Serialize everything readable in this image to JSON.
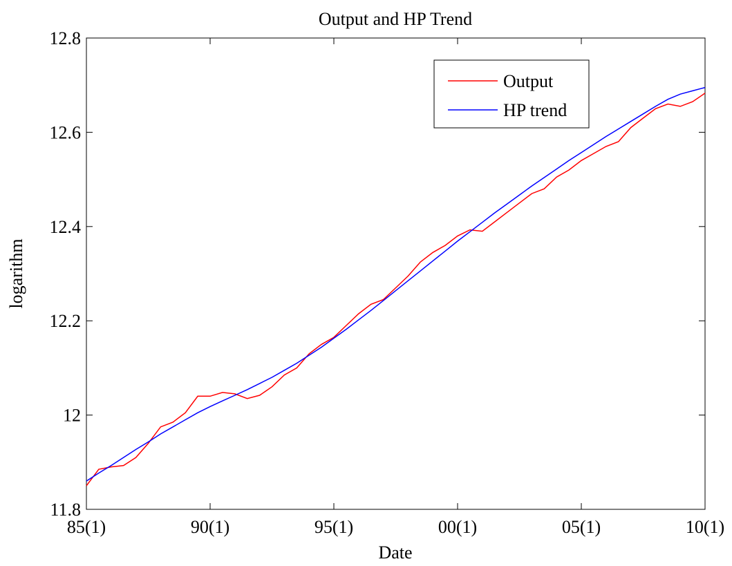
{
  "chart_data": {
    "type": "line",
    "title": "Output and HP Trend",
    "xlabel": "Date",
    "ylabel": "logarithm",
    "x": [
      1985,
      1985.5,
      1986,
      1986.5,
      1987,
      1987.5,
      1988,
      1988.5,
      1989,
      1989.5,
      1990,
      1990.5,
      1991,
      1991.5,
      1992,
      1992.5,
      1993,
      1993.5,
      1994,
      1994.5,
      1995,
      1995.5,
      1996,
      1996.5,
      1997,
      1997.5,
      1998,
      1998.5,
      1999,
      1999.5,
      2000,
      2000.5,
      2001,
      2001.5,
      2002,
      2002.5,
      2003,
      2003.5,
      2004,
      2004.5,
      2005,
      2005.5,
      2006,
      2006.5,
      2007,
      2007.5,
      2008,
      2008.5,
      2009,
      2009.5,
      2010
    ],
    "series": [
      {
        "name": "Output",
        "color": "#ff0000",
        "values": [
          11.85,
          11.885,
          11.89,
          11.893,
          11.91,
          11.94,
          11.975,
          11.985,
          12.005,
          12.04,
          12.04,
          12.048,
          12.045,
          12.035,
          12.042,
          12.06,
          12.085,
          12.1,
          12.13,
          12.15,
          12.165,
          12.19,
          12.215,
          12.235,
          12.245,
          12.27,
          12.295,
          12.325,
          12.345,
          12.36,
          12.38,
          12.393,
          12.39,
          12.41,
          12.43,
          12.45,
          12.47,
          12.48,
          12.505,
          12.52,
          12.54,
          12.555,
          12.57,
          12.58,
          12.61,
          12.63,
          12.65,
          12.66,
          12.655,
          12.665,
          12.683
        ]
      },
      {
        "name": "HP trend",
        "color": "#0000ff",
        "values": [
          11.86,
          11.877,
          11.893,
          11.91,
          11.927,
          11.943,
          11.96,
          11.975,
          11.99,
          12.005,
          12.018,
          12.03,
          12.042,
          12.054,
          12.067,
          12.08,
          12.095,
          12.11,
          12.127,
          12.144,
          12.163,
          12.182,
          12.202,
          12.222,
          12.243,
          12.264,
          12.285,
          12.306,
          12.327,
          12.348,
          12.369,
          12.389,
          12.409,
          12.429,
          12.448,
          12.467,
          12.486,
          12.504,
          12.522,
          12.54,
          12.557,
          12.574,
          12.591,
          12.607,
          12.623,
          12.639,
          12.655,
          12.67,
          12.681,
          12.688,
          12.695
        ]
      }
    ],
    "xlim": [
      1985,
      2010
    ],
    "xticks": [
      {
        "value": 1985,
        "label": "85(1)"
      },
      {
        "value": 1990,
        "label": "90(1)"
      },
      {
        "value": 1995,
        "label": "95(1)"
      },
      {
        "value": 2000,
        "label": "00(1)"
      },
      {
        "value": 2005,
        "label": "05(1)"
      },
      {
        "value": 2010,
        "label": "10(1)"
      }
    ],
    "ylim": [
      11.8,
      12.8
    ],
    "yticks": [
      11.8,
      12,
      12.2,
      12.4,
      12.6,
      12.8
    ],
    "legend": "upper right"
  }
}
